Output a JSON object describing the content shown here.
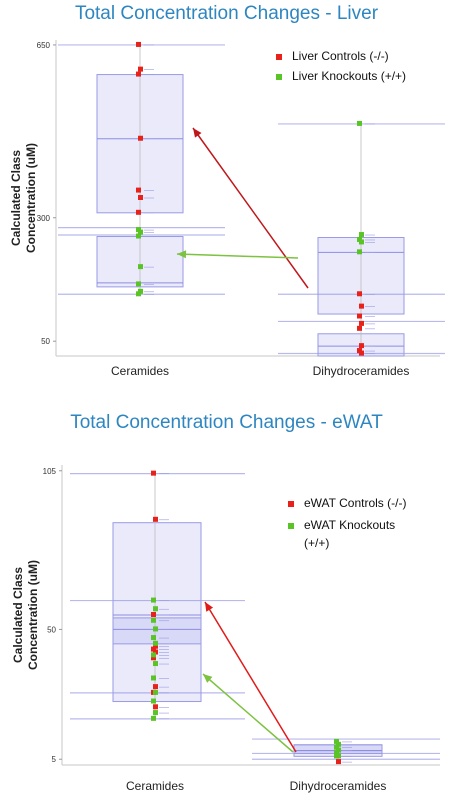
{
  "chart_data": [
    {
      "type": "box",
      "title": "Total Concentration Changes - Liver",
      "ylabel": "Calculated Class Concentration (uM)",
      "yticks": [
        50,
        300,
        650
      ],
      "ylim": [
        20,
        660
      ],
      "categories": [
        "Ceramides",
        "Dihydroceramides"
      ],
      "legend": {
        "position": "top-right",
        "entries": [
          {
            "label": "Liver Controls (-/-)",
            "color": "#e8221b"
          },
          {
            "label": "Liver Knockouts (+/+)",
            "color": "#5ac427"
          }
        ]
      },
      "boxes": [
        {
          "category": "Ceramides",
          "group": "Controls",
          "q1": 310,
          "median": 460,
          "q3": 590
        },
        {
          "category": "Ceramides",
          "group": "Knockouts",
          "q1": 160,
          "median": 168,
          "q3": 262
        },
        {
          "category": "Dihydroceramides",
          "group": "Controls",
          "q1": 20,
          "median": 40,
          "q3": 65
        },
        {
          "category": "Dihydroceramides",
          "group": "Knockouts",
          "q1": 105,
          "median": 230,
          "q3": 260
        }
      ],
      "reference_lines": [
        650,
        280,
        265,
        145,
        490,
        145,
        90,
        25
      ],
      "points": [
        {
          "category": "Ceramides",
          "group": "Controls",
          "values": [
            650,
            600,
            590,
            460,
            355,
            340,
            310
          ]
        },
        {
          "category": "Ceramides",
          "group": "Knockouts",
          "values": [
            275,
            270,
            262,
            200,
            165,
            150,
            145
          ]
        },
        {
          "category": "Dihydroceramides",
          "group": "Controls",
          "values": [
            145,
            120,
            100,
            85,
            75,
            40,
            30,
            25
          ]
        },
        {
          "category": "Dihydroceramides",
          "group": "Knockouts",
          "values": [
            490,
            265,
            255,
            250,
            230
          ]
        }
      ],
      "arrows": [
        {
          "from": "Dihydroceramides",
          "to": "Ceramides",
          "group": "Controls",
          "color": "#c0171b"
        },
        {
          "from": "Dihydroceramides",
          "to": "Ceramides",
          "group": "Knockouts",
          "color": "#7dc241"
        }
      ]
    },
    {
      "type": "box",
      "title": "Total Concentration Changes - eWAT",
      "ylabel": "Calculated Class Concentration (uM)",
      "yticks": [
        5,
        50,
        105
      ],
      "ylim": [
        3,
        107
      ],
      "categories": [
        "Ceramides",
        "Dihydroceramides"
      ],
      "legend": {
        "position": "top-right",
        "entries": [
          {
            "label": "eWAT Controls (-/-)",
            "color": "#e8221b"
          },
          {
            "label": "eWAT Knockouts (+/+)",
            "color": "#5ac427"
          }
        ]
      },
      "boxes": [
        {
          "category": "Ceramides",
          "group": "Controls",
          "q1": 25,
          "median": 55,
          "q3": 87
        },
        {
          "category": "Ceramides",
          "group": "Knockouts",
          "q1": 45,
          "median": 50,
          "q3": 54
        },
        {
          "category": "Dihydroceramides",
          "group": "Controls",
          "q1": 6,
          "median": 8,
          "q3": 10
        },
        {
          "category": "Dihydroceramides",
          "group": "Knockouts",
          "q1": 7,
          "median": 8,
          "q3": 10
        }
      ],
      "reference_lines": [
        104,
        60,
        28,
        19,
        12,
        7,
        5
      ],
      "points": [
        {
          "category": "Ceramides",
          "group": "Controls",
          "values": [
            104,
            88,
            55,
            44,
            43,
            42,
            40,
            30,
            28,
            23
          ]
        },
        {
          "category": "Ceramides",
          "group": "Knockouts",
          "values": [
            60,
            57,
            53,
            50,
            47,
            45,
            41,
            38,
            33,
            28,
            25,
            21,
            19
          ]
        },
        {
          "category": "Dihydroceramides",
          "group": "Controls",
          "values": [
            7,
            4
          ]
        },
        {
          "category": "Dihydroceramides",
          "group": "Knockouts",
          "values": [
            11,
            10,
            9,
            8,
            7,
            6,
            6
          ]
        }
      ],
      "arrows": [
        {
          "from": "Dihydroceramides",
          "to": "Ceramides",
          "group": "Controls",
          "color": "#e01b1b"
        },
        {
          "from": "Dihydroceramides",
          "to": "Ceramides",
          "group": "Knockouts",
          "color": "#7dc241"
        }
      ]
    }
  ]
}
